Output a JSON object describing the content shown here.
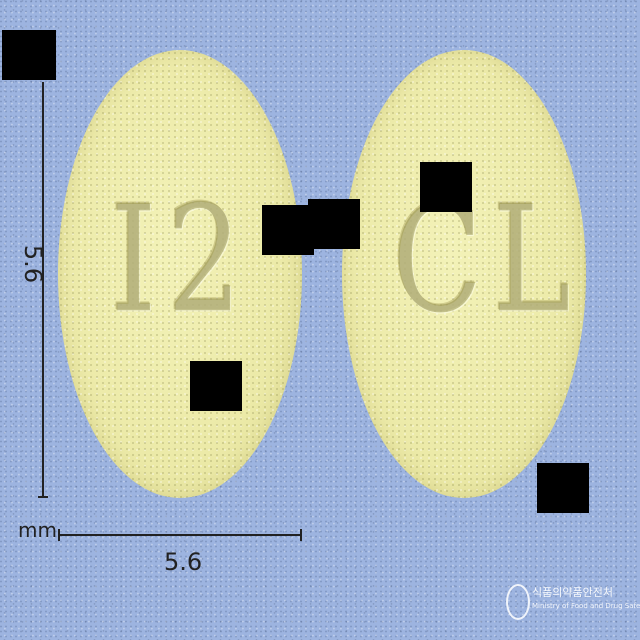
{
  "image": {
    "background_color": "#9db4e0",
    "tablet_color": "#eceaa8",
    "tablets": [
      {
        "side": "left",
        "imprint": "I2"
      },
      {
        "side": "right",
        "imprint": "CL"
      }
    ]
  },
  "dimensions": {
    "height_label": "5.6",
    "width_label": "5.6",
    "unit_label": "mm"
  },
  "watermark": {
    "korean": "식품의약품안전처",
    "english": "Ministry of Food and Drug Safety"
  }
}
